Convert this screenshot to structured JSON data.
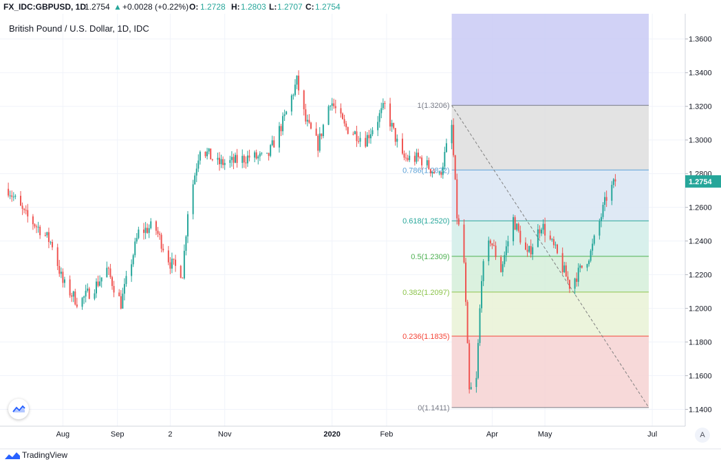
{
  "header": {
    "symbol": "FX_IDC:GBPUSD, 1D",
    "last": "1.2754",
    "arrow": "▲",
    "change": "+0.0028 (+0.22%)",
    "o_label": "O:",
    "o_value": "1.2728",
    "h_label": "H:",
    "h_value": "1.2803",
    "l_label": "L:",
    "l_value": "1.2707",
    "c_label": "C:",
    "c_value": "1.2754"
  },
  "title": "British Pound / U.S. Dollar, 1D, IDC",
  "footer": {
    "brand": "TradingView",
    "scale_mode": "A"
  },
  "colors": {
    "up": "#26a69a",
    "down": "#ef5350",
    "grid": "#f0f3fa",
    "axis_text": "#131722",
    "fib_top": "#c9caf4"
  },
  "chart_data": {
    "type": "candlestick",
    "title": "British Pound / U.S. Dollar, 1D, IDC",
    "ylim": [
      1.13,
      1.375
    ],
    "y_ticks": [
      "1.3600",
      "1.3400",
      "1.3200",
      "1.3000",
      "1.2800",
      "1.2600",
      "1.2400",
      "1.2200",
      "1.2000",
      "1.1800",
      "1.1600",
      "1.1400"
    ],
    "x_ticks": [
      "Aug",
      "Sep",
      "2",
      "Nov",
      "2020",
      "Feb",
      "Apr",
      "May",
      "Jul"
    ],
    "last_price": "1.2754",
    "close_anchors": [
      [
        "2019-07-01",
        1.271
      ],
      [
        "2019-07-10",
        1.256
      ],
      [
        "2019-07-20",
        1.246
      ],
      [
        "2019-07-26",
        1.238
      ],
      [
        "2019-08-01",
        1.215
      ],
      [
        "2019-08-10",
        1.203
      ],
      [
        "2019-08-20",
        1.214
      ],
      [
        "2019-08-26",
        1.223
      ],
      [
        "2019-09-03",
        1.203
      ],
      [
        "2019-09-13",
        1.245
      ],
      [
        "2019-09-22",
        1.249
      ],
      [
        "2019-10-01",
        1.227
      ],
      [
        "2019-10-08",
        1.221
      ],
      [
        "2019-10-11",
        1.258
      ],
      [
        "2019-10-18",
        1.296
      ],
      [
        "2019-10-28",
        1.286
      ],
      [
        "2019-11-06",
        1.287
      ],
      [
        "2019-11-15",
        1.29
      ],
      [
        "2019-11-25",
        1.289
      ],
      [
        "2019-12-05",
        1.313
      ],
      [
        "2019-12-12",
        1.335
      ],
      [
        "2019-12-17",
        1.311
      ],
      [
        "2019-12-24",
        1.297
      ],
      [
        "2019-12-31",
        1.324
      ],
      [
        "2020-01-08",
        1.308
      ],
      [
        "2020-01-20",
        1.3
      ],
      [
        "2020-01-31",
        1.32
      ],
      [
        "2020-02-10",
        1.289
      ],
      [
        "2020-02-20",
        1.289
      ],
      [
        "2020-03-02",
        1.278
      ],
      [
        "2020-03-09",
        1.308
      ],
      [
        "2020-03-12",
        1.255
      ],
      [
        "2020-03-16",
        1.227
      ],
      [
        "2020-03-19",
        1.15
      ],
      [
        "2020-03-23",
        1.157
      ],
      [
        "2020-03-26",
        1.22
      ],
      [
        "2020-03-31",
        1.241
      ],
      [
        "2020-04-06",
        1.223
      ],
      [
        "2020-04-13",
        1.253
      ],
      [
        "2020-04-21",
        1.231
      ],
      [
        "2020-04-29",
        1.25
      ],
      [
        "2020-05-07",
        1.234
      ],
      [
        "2020-05-15",
        1.214
      ],
      [
        "2020-05-20",
        1.221
      ],
      [
        "2020-05-27",
        1.233
      ],
      [
        "2020-06-05",
        1.266
      ],
      [
        "2020-06-10",
        1.2754
      ]
    ],
    "fibonacci": {
      "start": "2020-03-09",
      "end": "2020-06-29",
      "levels": [
        {
          "label": "1(1.3206)",
          "price": 1.3206,
          "color": "#787b86",
          "fill": "#e0e0e0"
        },
        {
          "label": "0.786(1.2822)",
          "price": 1.2822,
          "color": "#5aa0d6",
          "fill": "#dbe7f4"
        },
        {
          "label": "0.618(1.2520)",
          "price": 1.252,
          "color": "#26a69a",
          "fill": "#d4eeea"
        },
        {
          "label": "0.5(1.2309)",
          "price": 1.2309,
          "color": "#4caf50",
          "fill": "#d7efdb"
        },
        {
          "label": "0.382(1.2097)",
          "price": 1.2097,
          "color": "#8bc34a",
          "fill": "#eaf3d8"
        },
        {
          "label": "0.236(1.1835)",
          "price": 1.1835,
          "color": "#f44336",
          "fill": "#f6d5d5"
        },
        {
          "label": "0(1.1411)",
          "price": 1.1411,
          "color": "#787b86",
          "fill": null
        }
      ]
    }
  }
}
